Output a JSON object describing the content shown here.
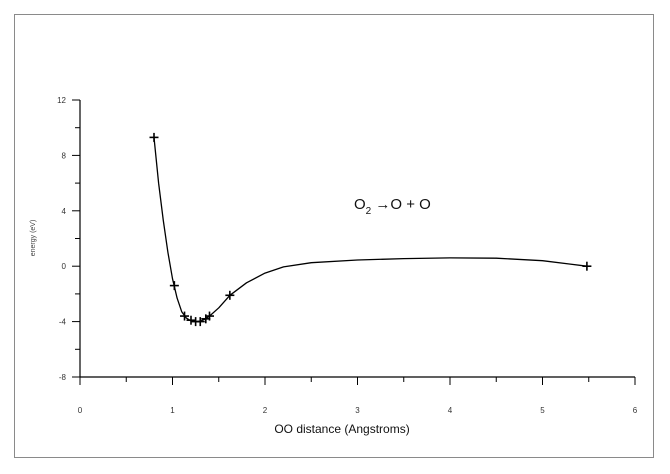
{
  "chart_data": {
    "type": "line",
    "title": "",
    "xlabel": "OO  distance (Angstroms)",
    "ylabel": "energy (eV)",
    "xlim": [
      0,
      6
    ],
    "ylim": [
      -8,
      12
    ],
    "x_ticks": [
      "0",
      "1",
      "2",
      "3",
      "4",
      "5",
      "6"
    ],
    "y_ticks": [
      "-8",
      "-4",
      "0",
      "4",
      "8",
      "12"
    ],
    "annotation": {
      "main": "O",
      "sub": "2",
      "rest": " →O + O"
    },
    "series": [
      {
        "marker_points": [
          {
            "x": 0.8,
            "y": 9.3
          },
          {
            "x": 1.02,
            "y": -1.4
          },
          {
            "x": 1.13,
            "y": -3.6
          },
          {
            "x": 1.2,
            "y": -3.9
          },
          {
            "x": 1.25,
            "y": -4.0
          },
          {
            "x": 1.3,
            "y": -4.0
          },
          {
            "x": 1.36,
            "y": -3.8
          },
          {
            "x": 1.4,
            "y": -3.6
          },
          {
            "x": 1.62,
            "y": -2.1
          },
          {
            "x": 5.48,
            "y": 0.0
          }
        ],
        "curve_points": [
          {
            "x": 0.8,
            "y": 9.3
          },
          {
            "x": 0.85,
            "y": 6.0
          },
          {
            "x": 0.9,
            "y": 3.3
          },
          {
            "x": 0.95,
            "y": 1.0
          },
          {
            "x": 1.0,
            "y": -0.9
          },
          {
            "x": 1.05,
            "y": -2.3
          },
          {
            "x": 1.1,
            "y": -3.3
          },
          {
            "x": 1.15,
            "y": -3.75
          },
          {
            "x": 1.2,
            "y": -3.95
          },
          {
            "x": 1.25,
            "y": -4.0
          },
          {
            "x": 1.3,
            "y": -3.97
          },
          {
            "x": 1.35,
            "y": -3.82
          },
          {
            "x": 1.4,
            "y": -3.6
          },
          {
            "x": 1.5,
            "y": -3.0
          },
          {
            "x": 1.62,
            "y": -2.1
          },
          {
            "x": 1.8,
            "y": -1.2
          },
          {
            "x": 2.0,
            "y": -0.5
          },
          {
            "x": 2.2,
            "y": -0.05
          },
          {
            "x": 2.5,
            "y": 0.25
          },
          {
            "x": 3.0,
            "y": 0.45
          },
          {
            "x": 3.5,
            "y": 0.55
          },
          {
            "x": 4.0,
            "y": 0.6
          },
          {
            "x": 4.5,
            "y": 0.58
          },
          {
            "x": 5.0,
            "y": 0.4
          },
          {
            "x": 5.3,
            "y": 0.15
          },
          {
            "x": 5.48,
            "y": 0.0
          }
        ]
      }
    ],
    "grid": false,
    "legend": "none"
  }
}
